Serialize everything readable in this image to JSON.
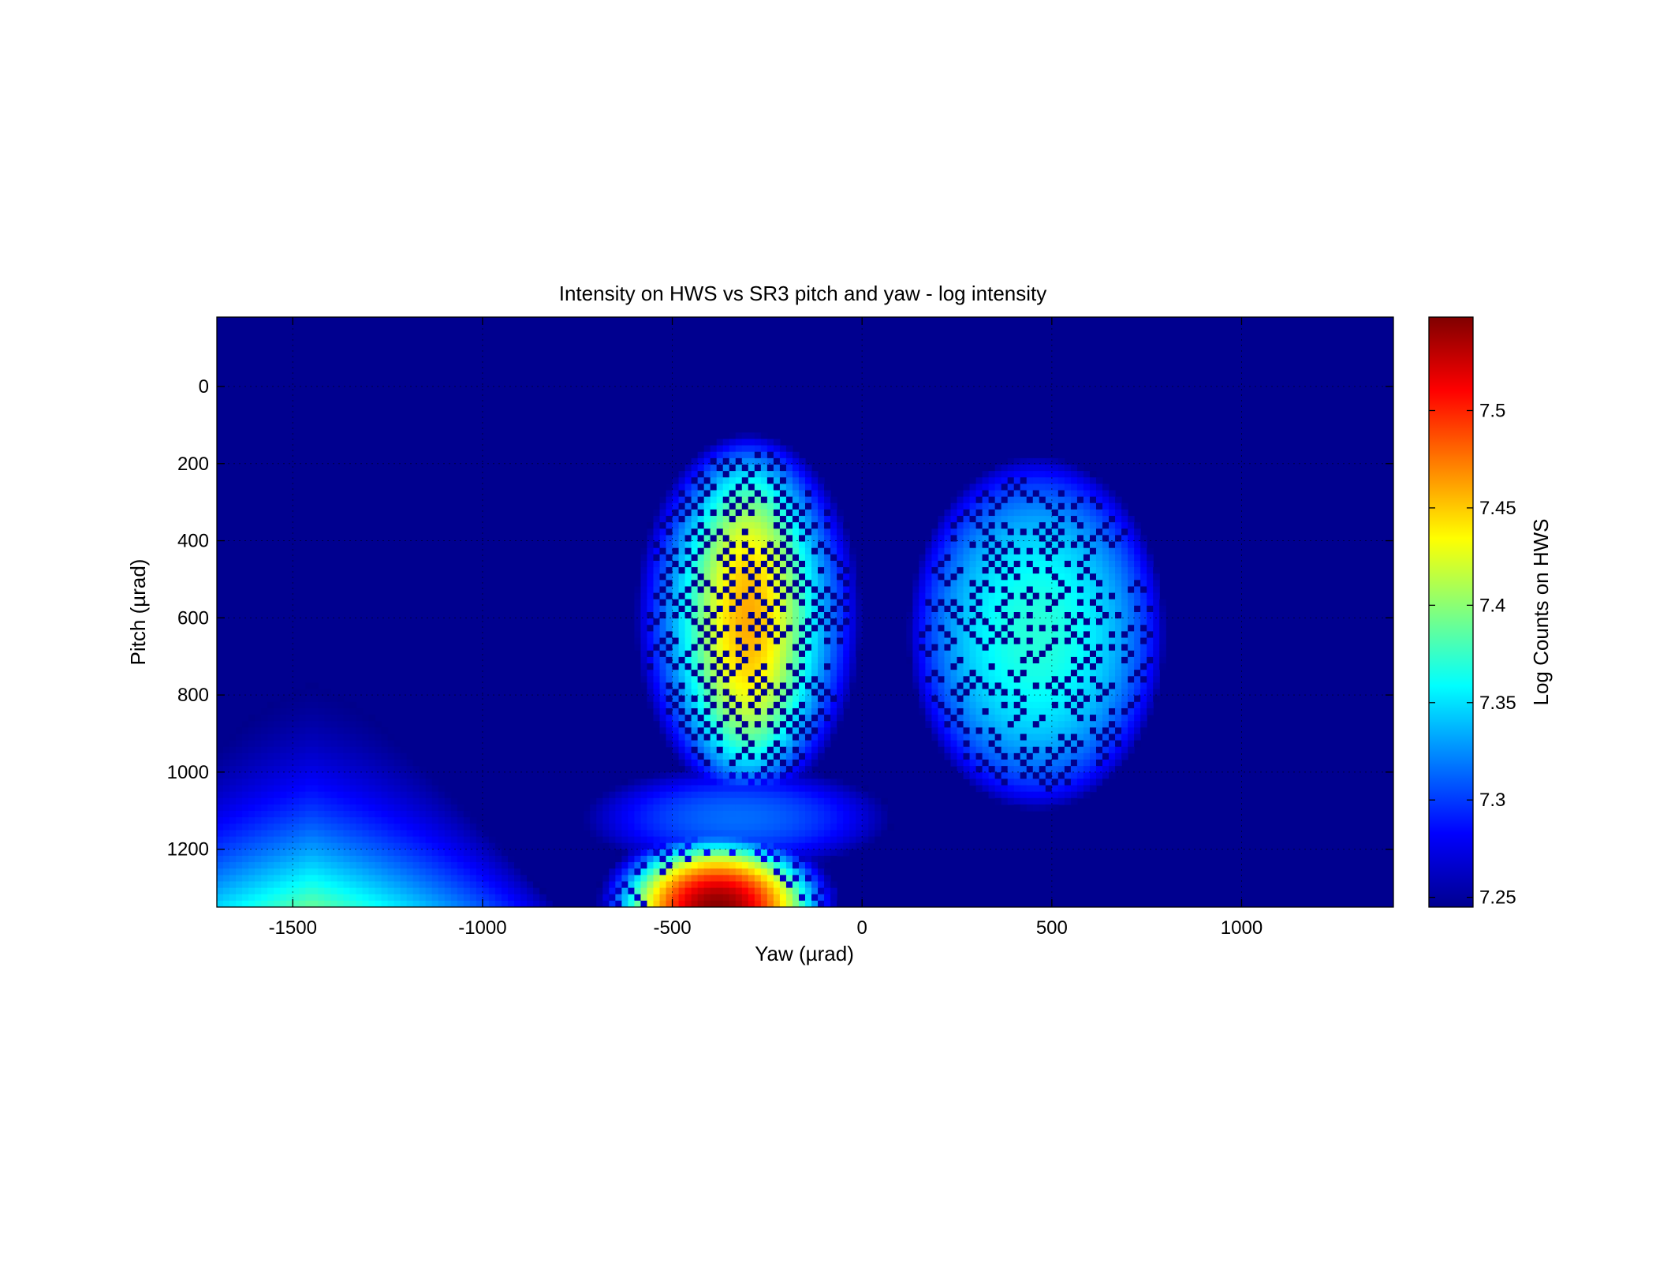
{
  "chart_data": {
    "type": "heatmap",
    "title": "Intensity on HWS vs SR3 pitch and yaw - log intensity",
    "xlabel": "Yaw (µrad)",
    "ylabel": "Pitch (µrad)",
    "colorbar_label": "Log Counts on HWS",
    "colormap": "jet",
    "grid": "dotted",
    "xlim": [
      -1700,
      1400
    ],
    "ylim": [
      -180,
      1350
    ],
    "y_direction": "reversed (0 at top)",
    "color_range": [
      7.245,
      7.548
    ],
    "x_ticks": [
      {
        "value": -1500,
        "label": "-1500"
      },
      {
        "value": -1000,
        "label": "-1000"
      },
      {
        "value": -500,
        "label": "-500"
      },
      {
        "value": 0,
        "label": "0"
      },
      {
        "value": 500,
        "label": "500"
      },
      {
        "value": 1000,
        "label": "1000"
      }
    ],
    "y_ticks": [
      {
        "value": 0,
        "label": "0"
      },
      {
        "value": 200,
        "label": "200"
      },
      {
        "value": 400,
        "label": "400"
      },
      {
        "value": 600,
        "label": "600"
      },
      {
        "value": 800,
        "label": "800"
      },
      {
        "value": 1000,
        "label": "1000"
      },
      {
        "value": 1200,
        "label": "1200"
      }
    ],
    "colorbar_ticks": [
      {
        "value": 7.25,
        "label": "7.25"
      },
      {
        "value": 7.3,
        "label": "7.3"
      },
      {
        "value": 7.35,
        "label": "7.35"
      },
      {
        "value": 7.4,
        "label": "7.4"
      },
      {
        "value": 7.45,
        "label": "7.45"
      },
      {
        "value": 7.5,
        "label": "7.5"
      }
    ],
    "grid_cells": {
      "nx": 186,
      "ny": 92
    },
    "features": [
      {
        "name": "left lobe",
        "yaw": -300,
        "pitch": 600,
        "yaw_half_width": 300,
        "pitch_half_height": 480,
        "peak": 7.46,
        "checker_holes": true
      },
      {
        "name": "right lobe",
        "yaw": 460,
        "pitch": 640,
        "yaw_half_width": 340,
        "pitch_half_height": 460,
        "peak": 7.37,
        "checker_holes": true
      },
      {
        "name": "bottom hotspot",
        "yaw": -380,
        "pitch": 1350,
        "yaw_half_width": 330,
        "pitch_half_height": 220,
        "peak": 7.545
      },
      {
        "name": "bottom-left wedge",
        "yaw": -1450,
        "pitch": 1350,
        "apex_pitch": 650,
        "base_half_width": 650,
        "peak": 7.39
      }
    ]
  }
}
